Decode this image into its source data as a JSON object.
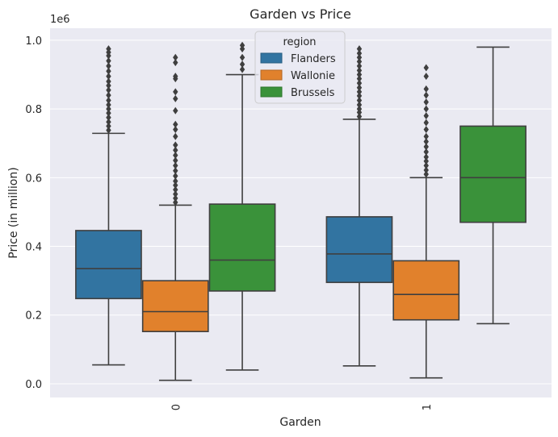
{
  "chart_data": {
    "type": "box",
    "title": "Garden vs Price",
    "xlabel": "Garden",
    "ylabel": "Price (in million)",
    "y_offset_label": "1e6",
    "categories": [
      "0",
      "1"
    ],
    "ylim": [
      -40000,
      1035000
    ],
    "yticks": [
      0,
      200000,
      400000,
      600000,
      800000,
      1000000
    ],
    "ytick_labels": [
      "0.0",
      "0.2",
      "0.4",
      "0.6",
      "0.8",
      "1.0"
    ],
    "grid": true,
    "legend": {
      "title": "region",
      "placement": "top-center"
    },
    "series": [
      {
        "name": "Flanders",
        "color": "#3274a1",
        "boxes": [
          {
            "category": "0",
            "whisker_low": 55000,
            "q1": 248000,
            "median": 335000,
            "q3": 446000,
            "whisker_high": 729000,
            "outliers": [
              738000,
              750000,
              762000,
              775000,
              788000,
              800000,
              812000,
              825000,
              840000,
              855000,
              868000,
              880000,
              895000,
              910000,
              925000,
              940000,
              955000,
              965000,
              975000
            ]
          },
          {
            "category": "1",
            "whisker_low": 52000,
            "q1": 295000,
            "median": 378000,
            "q3": 486000,
            "whisker_high": 770000,
            "outliers": [
              778000,
              790000,
              800000,
              812000,
              825000,
              838000,
              850000,
              862000,
              875000,
              888000,
              900000,
              912000,
              925000,
              938000,
              950000,
              962000,
              975000
            ]
          }
        ]
      },
      {
        "name": "Wallonie",
        "color": "#e1812c",
        "boxes": [
          {
            "category": "0",
            "whisker_low": 10000,
            "q1": 152000,
            "median": 210000,
            "q3": 300000,
            "whisker_high": 520000,
            "outliers": [
              528000,
              540000,
              552000,
              565000,
              578000,
              590000,
              605000,
              620000,
              635000,
              650000,
              665000,
              680000,
              695000,
              720000,
              740000,
              755000,
              795000,
              830000,
              850000,
              888000,
              895000,
              935000,
              950000
            ]
          },
          {
            "category": "1",
            "whisker_low": 17000,
            "q1": 186000,
            "median": 260000,
            "q3": 358000,
            "whisker_high": 600000,
            "outliers": [
              610000,
              622000,
              635000,
              648000,
              660000,
              675000,
              690000,
              705000,
              720000,
              740000,
              760000,
              780000,
              800000,
              820000,
              840000,
              858000,
              895000,
              920000
            ]
          }
        ]
      },
      {
        "name": "Brussels",
        "color": "#3a923a",
        "boxes": [
          {
            "category": "0",
            "whisker_low": 40000,
            "q1": 270000,
            "median": 360000,
            "q3": 523000,
            "whisker_high": 900000,
            "outliers": [
              915000,
              930000,
              950000,
              975000,
              985000
            ]
          },
          {
            "category": "1",
            "whisker_low": 175000,
            "q1": 470000,
            "median": 600000,
            "q3": 750000,
            "whisker_high": 980000,
            "outliers": []
          }
        ]
      }
    ]
  }
}
